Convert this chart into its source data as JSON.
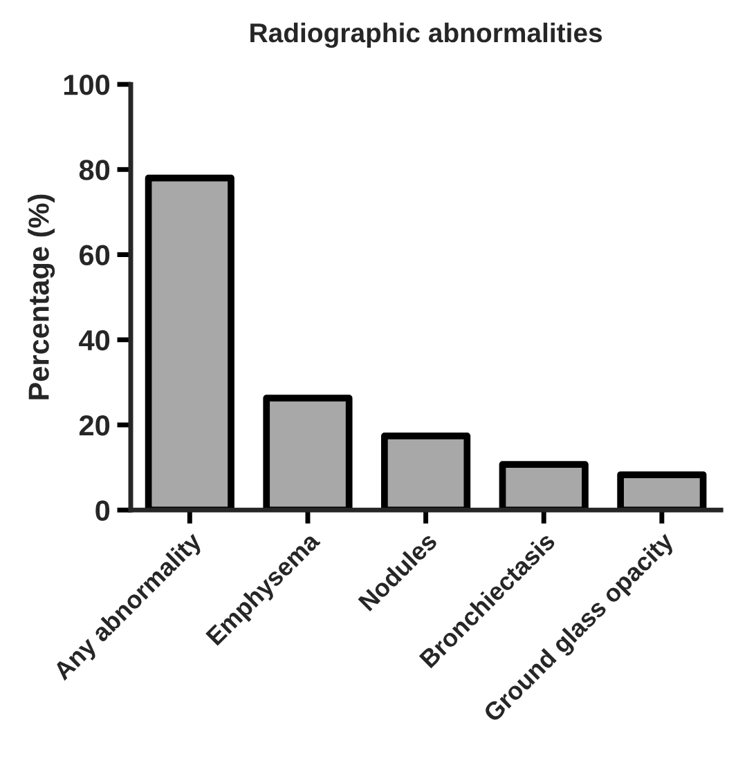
{
  "chart_data": {
    "type": "bar",
    "title": "Radiographic abnormalities",
    "ylabel": "Percentage (%)",
    "categories": [
      "Any abnormality",
      "Emphysema",
      "Nodules",
      "Bronchiectasis",
      "Ground glass opacity"
    ],
    "values": [
      78,
      26.3,
      17.4,
      10.7,
      8.3
    ],
    "color": "#a8a8a8",
    "ylim": [
      0,
      100
    ],
    "yticks": [
      0,
      20,
      40,
      60,
      80,
      100
    ],
    "grid": false
  }
}
